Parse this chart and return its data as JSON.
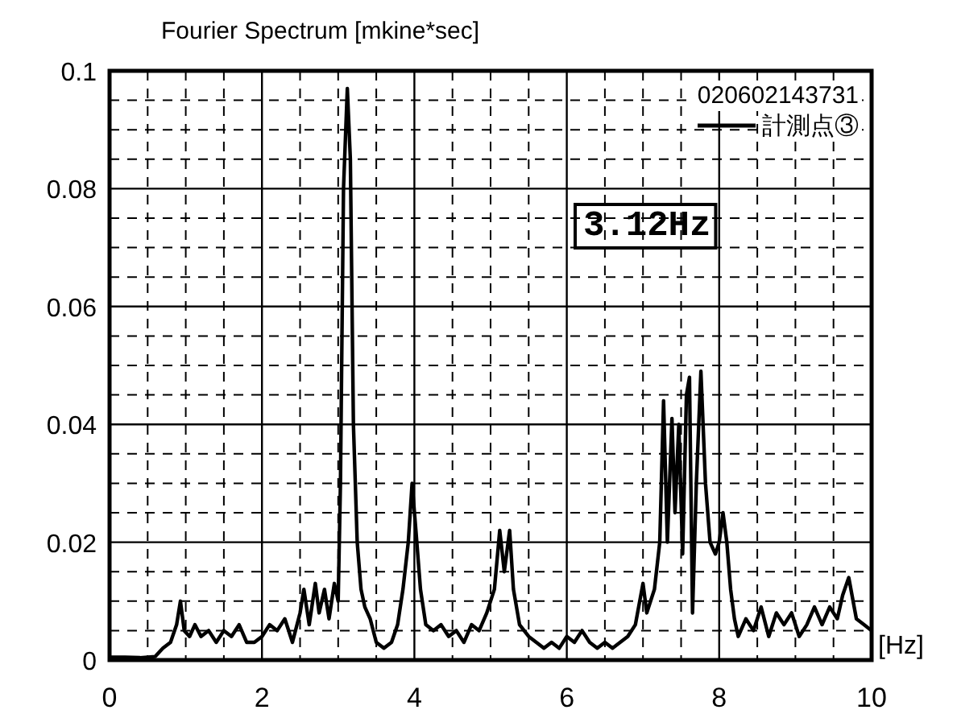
{
  "chart_data": {
    "type": "line",
    "ylabel": "Fourier Spectrum [mkine*sec]",
    "xlabel": "[Hz]",
    "legend_title": "020602143731",
    "legend": "top right",
    "grid": true,
    "annotations": [
      "3.12Hz"
    ],
    "xlim": [
      0,
      10
    ],
    "ylim": [
      0,
      0.1
    ],
    "xticks": [
      0,
      {
        "value": 0.5,
        "label": null
      },
      {
        "value": 1,
        "label": null
      },
      {
        "value": 1.5,
        "label": null
      },
      2,
      {
        "value": 2.5,
        "label": null
      },
      {
        "value": 3,
        "label": null
      },
      {
        "value": 3.5,
        "label": null
      },
      4,
      {
        "value": 4.5,
        "label": null
      },
      {
        "value": 5,
        "label": null
      },
      {
        "value": 5.5,
        "label": null
      },
      6,
      {
        "value": 6.5,
        "label": null
      },
      {
        "value": 7,
        "label": null
      },
      {
        "value": 7.5,
        "label": null
      },
      8,
      {
        "value": 8.5,
        "label": null
      },
      {
        "value": 9,
        "label": null
      },
      {
        "value": 9.5,
        "label": null
      },
      10
    ],
    "yticks": [
      0,
      {
        "value": 0.005,
        "label": null
      },
      {
        "value": 0.01,
        "label": null
      },
      {
        "value": 0.015,
        "label": null
      },
      0.02,
      {
        "value": 0.025,
        "label": null
      },
      {
        "value": 0.03,
        "label": null
      },
      {
        "value": 0.035,
        "label": null
      },
      0.04,
      {
        "value": 0.045,
        "label": null
      },
      {
        "value": 0.05,
        "label": null
      },
      {
        "value": 0.055,
        "label": null
      },
      0.06,
      {
        "value": 0.065,
        "label": null
      },
      {
        "value": 0.07,
        "label": null
      },
      {
        "value": 0.075,
        "label": null
      },
      0.08,
      {
        "value": 0.085,
        "label": null
      },
      {
        "value": 0.09,
        "label": null
      },
      {
        "value": 0.095,
        "label": null
      },
      0.1
    ],
    "series": [
      {
        "name": "計測点③",
        "color": "#000000",
        "x": [
          0,
          0.2,
          0.4,
          0.6,
          0.7,
          0.8,
          0.88,
          0.93,
          0.98,
          1.05,
          1.12,
          1.2,
          1.3,
          1.4,
          1.5,
          1.6,
          1.7,
          1.8,
          1.9,
          2.0,
          2.1,
          2.2,
          2.3,
          2.4,
          2.5,
          2.55,
          2.62,
          2.7,
          2.75,
          2.82,
          2.88,
          2.95,
          3.0,
          3.03,
          3.07,
          3.12,
          3.16,
          3.2,
          3.25,
          3.3,
          3.35,
          3.42,
          3.5,
          3.6,
          3.7,
          3.78,
          3.85,
          3.92,
          3.97,
          4.02,
          4.08,
          4.15,
          4.25,
          4.35,
          4.45,
          4.55,
          4.65,
          4.75,
          4.85,
          4.95,
          5.05,
          5.12,
          5.18,
          5.25,
          5.3,
          5.38,
          5.5,
          5.6,
          5.7,
          5.8,
          5.9,
          6.0,
          6.1,
          6.2,
          6.3,
          6.4,
          6.5,
          6.6,
          6.7,
          6.8,
          6.9,
          7.0,
          7.05,
          7.15,
          7.22,
          7.27,
          7.32,
          7.38,
          7.42,
          7.47,
          7.52,
          7.57,
          7.61,
          7.65,
          7.7,
          7.76,
          7.82,
          7.88,
          7.95,
          8.0,
          8.05,
          8.1,
          8.15,
          8.2,
          8.25,
          8.35,
          8.45,
          8.55,
          8.65,
          8.75,
          8.85,
          8.95,
          9.05,
          9.15,
          9.25,
          9.35,
          9.45,
          9.55,
          9.62,
          9.7,
          9.8,
          9.9,
          10
        ],
        "values": [
          0.0005,
          0.0005,
          0.0004,
          0.0006,
          0.002,
          0.003,
          0.006,
          0.01,
          0.005,
          0.004,
          0.006,
          0.004,
          0.005,
          0.003,
          0.005,
          0.004,
          0.006,
          0.003,
          0.003,
          0.004,
          0.006,
          0.005,
          0.007,
          0.003,
          0.008,
          0.012,
          0.006,
          0.013,
          0.008,
          0.012,
          0.007,
          0.013,
          0.01,
          0.03,
          0.08,
          0.097,
          0.085,
          0.04,
          0.02,
          0.012,
          0.009,
          0.007,
          0.003,
          0.002,
          0.003,
          0.006,
          0.012,
          0.02,
          0.03,
          0.022,
          0.012,
          0.006,
          0.005,
          0.006,
          0.004,
          0.005,
          0.003,
          0.006,
          0.005,
          0.008,
          0.012,
          0.022,
          0.015,
          0.022,
          0.012,
          0.006,
          0.004,
          0.003,
          0.002,
          0.003,
          0.002,
          0.004,
          0.003,
          0.005,
          0.003,
          0.002,
          0.003,
          0.002,
          0.003,
          0.004,
          0.006,
          0.013,
          0.008,
          0.012,
          0.02,
          0.044,
          0.02,
          0.041,
          0.025,
          0.04,
          0.018,
          0.045,
          0.048,
          0.008,
          0.03,
          0.049,
          0.03,
          0.02,
          0.018,
          0.02,
          0.025,
          0.02,
          0.012,
          0.007,
          0.004,
          0.007,
          0.005,
          0.009,
          0.004,
          0.008,
          0.006,
          0.008,
          0.004,
          0.006,
          0.009,
          0.006,
          0.009,
          0.007,
          0.011,
          0.014,
          0.007,
          0.006,
          0.005
        ]
      }
    ]
  }
}
